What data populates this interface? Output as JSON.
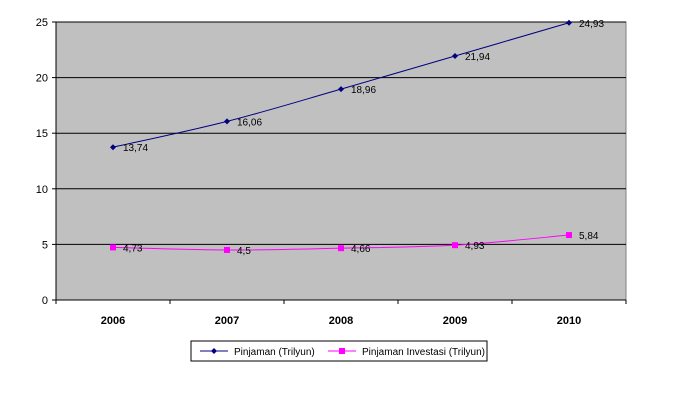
{
  "chart_data": {
    "type": "line",
    "categories": [
      "2006",
      "2007",
      "2008",
      "2009",
      "2010"
    ],
    "ylim": [
      0,
      25
    ],
    "yticks": [
      0,
      5,
      10,
      15,
      20,
      25
    ],
    "grid": true,
    "legend_position": "bottom",
    "plot_background": "#c0c0c0",
    "series": [
      {
        "name": "Pinjaman (Trilyun)",
        "values": [
          13.74,
          16.06,
          18.96,
          21.94,
          24.93
        ],
        "labels": [
          "13,74",
          "16,06",
          "18,96",
          "21,94",
          "24,93"
        ],
        "color": "#000080",
        "marker": "diamond"
      },
      {
        "name": "Pinjaman Investasi (Trilyun)",
        "values": [
          4.73,
          4.5,
          4.66,
          4.93,
          5.84
        ],
        "labels": [
          "4,73",
          "4,5",
          "4,66",
          "4,93",
          "5,84"
        ],
        "color": "#ff00ff",
        "marker": "square"
      }
    ]
  }
}
